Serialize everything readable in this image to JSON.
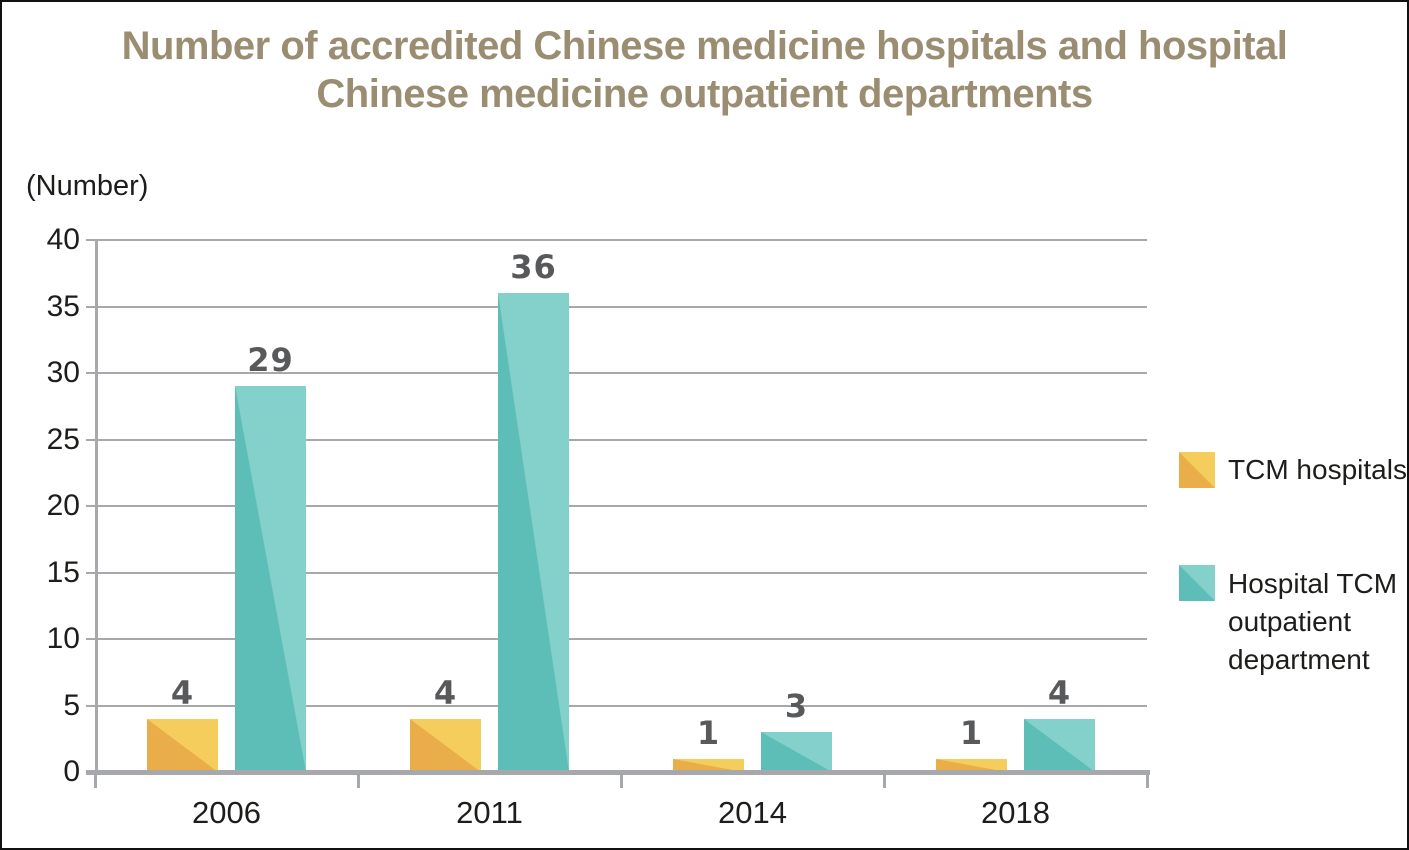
{
  "page": {
    "background": "#ffffff",
    "border_color": "#111111"
  },
  "title": {
    "lines": [
      "Number of accredited Chinese medicine hospitals and hospital",
      "Chinese medicine outpatient departments"
    ],
    "color": "#9a8d71"
  },
  "chart_data": {
    "type": "bar",
    "title": "Number of accredited Chinese medicine hospitals and hospital Chinese medicine outpatient departments",
    "xlabel": "",
    "ylabel": "(Number)",
    "categories": [
      "2006",
      "2011",
      "2014",
      "2018"
    ],
    "series": [
      {
        "name": "TCM hospitals",
        "values": [
          4,
          4,
          1,
          1
        ],
        "color_light": "#f5cd5c",
        "color_dark": "#e9ae49"
      },
      {
        "name": "Hospital TCM outpatient department",
        "values": [
          29,
          36,
          3,
          4
        ],
        "color_light": "#84d0cb",
        "color_dark": "#5dbdb7"
      }
    ],
    "ylim": [
      0,
      40
    ],
    "ytick_step": 5,
    "yticks": [
      0,
      5,
      10,
      15,
      20,
      25,
      30,
      35,
      40
    ],
    "grid": true,
    "legend_position": "right",
    "value_labels_shown": true,
    "value_label_color": "#58595b",
    "axis_color": "#a6a8ab",
    "tick_text_color": "#1d1d1b"
  },
  "legend": {
    "items": [
      {
        "label": "TCM hospitals"
      },
      {
        "label": "Hospital TCM\noutpatient\ndepartment"
      }
    ]
  }
}
